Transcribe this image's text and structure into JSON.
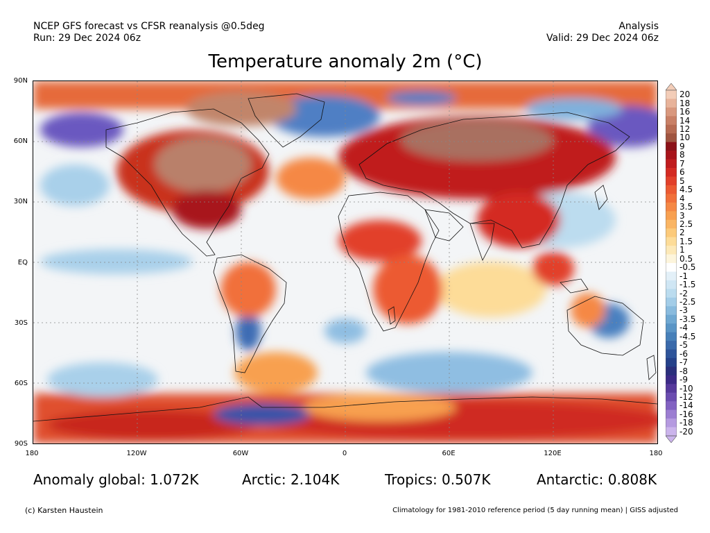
{
  "header": {
    "line1": "NCEP GFS forecast vs CFSR reanalysis @0.5deg",
    "line2": "Run: 29 Dec 2024 06z",
    "right1": "Analysis",
    "right2": "Valid: 29 Dec 2024 06z"
  },
  "title": "Temperature anomaly 2m (°C)",
  "map": {
    "projection": "equirectangular",
    "lat_labels": [
      "90N",
      "60N",
      "30N",
      "EQ",
      "30S",
      "60S",
      "90S"
    ],
    "lon_labels": [
      "180",
      "120W",
      "60W",
      "0",
      "60E",
      "120E",
      "180"
    ]
  },
  "colorbar": {
    "labels": [
      "20",
      "18",
      "16",
      "14",
      "12",
      "10",
      "9",
      "8",
      "7",
      "6",
      "5",
      "4.5",
      "4",
      "3.5",
      "3",
      "2.5",
      "2",
      "1.5",
      "1",
      "0.5",
      "-0.5",
      "-1",
      "-1.5",
      "-2",
      "-2.5",
      "-3",
      "-3.5",
      "-4",
      "-4.5",
      "-5",
      "-6",
      "-7",
      "-8",
      "-9",
      "-10",
      "-12",
      "-14",
      "-16",
      "-18",
      "-20"
    ],
    "colors": [
      "#f3cdb8",
      "#e8b39a",
      "#d9987e",
      "#c98066",
      "#b76b52",
      "#a05540",
      "#8c1218",
      "#a8141b",
      "#c01c1e",
      "#d42a22",
      "#e2402a",
      "#ec5a32",
      "#f1703a",
      "#f58845",
      "#f8a050",
      "#fab563",
      "#fcca7a",
      "#fddc98",
      "#fde9b8",
      "#fdf5dc",
      "#ffffff",
      "#e3f0f8",
      "#cfe6f4",
      "#bbdcef",
      "#a3cde8",
      "#89bbde",
      "#6fa8d2",
      "#5a95c6",
      "#4780b9",
      "#3a6aab",
      "#2e549a",
      "#25418a",
      "#2a2f7c",
      "#3c2a87",
      "#56399c",
      "#6b4cb0",
      "#8262c2",
      "#9c7ed2",
      "#b59ae0",
      "#cbb4ec"
    ]
  },
  "stats": {
    "global": "Anomaly global: 1.072K",
    "arctic": "Arctic: 2.104K",
    "tropics": "Tropics: 0.507K",
    "antarctic": "Antarctic: 0.808K"
  },
  "footer": {
    "credit": "(c) Karsten Haustein",
    "climatology": "Climatology for 1981-2010 reference period (5 day running mean) | GISS adjusted"
  }
}
